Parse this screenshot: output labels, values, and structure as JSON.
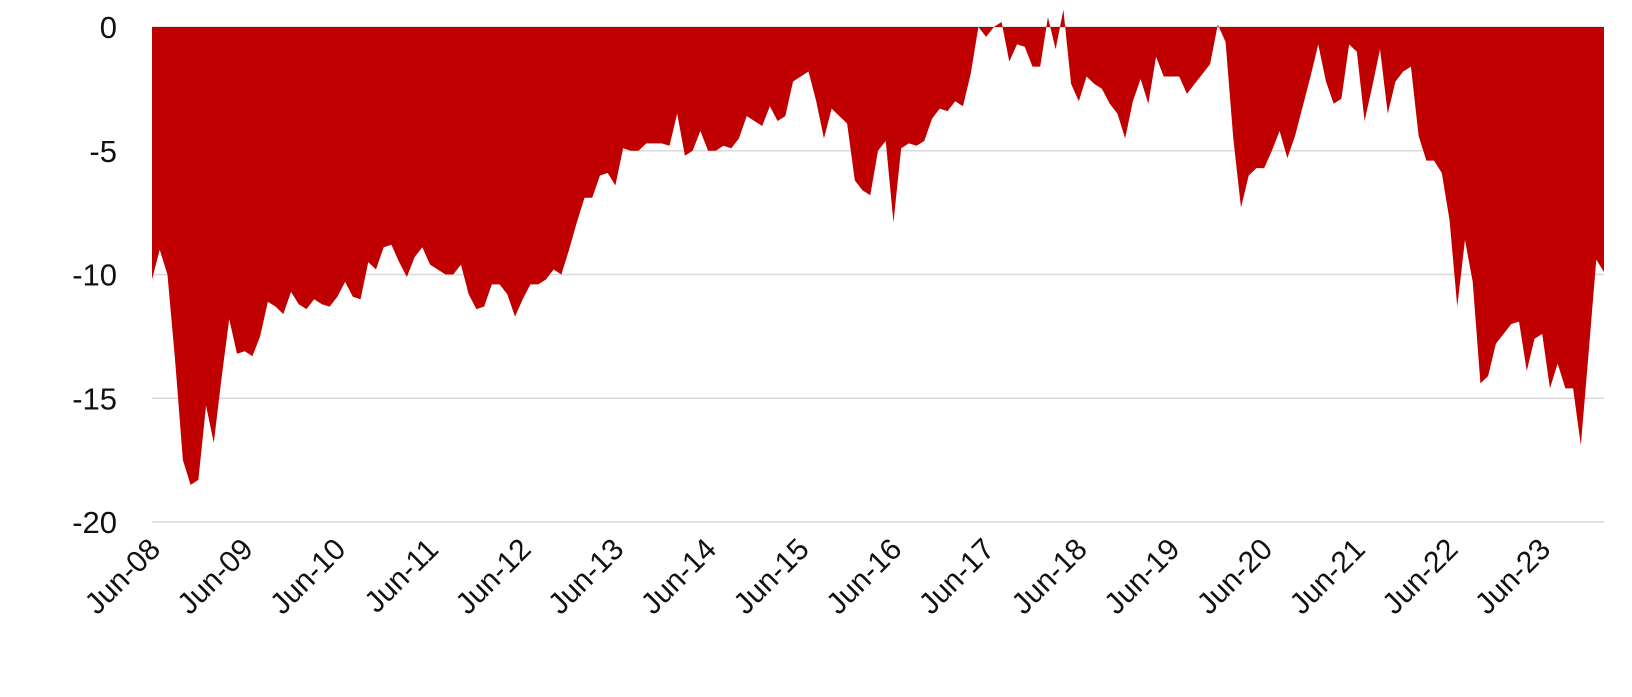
{
  "chart_data": {
    "type": "area",
    "title": "",
    "xlabel": "",
    "ylabel": "",
    "ylim": [
      -20,
      0
    ],
    "yticks": [
      0,
      -5,
      -10,
      -15,
      -20
    ],
    "ytick_labels": [
      "0",
      "-5",
      "-10",
      "-15",
      "-20"
    ],
    "xlim": [
      "Jun-08",
      "Feb-24"
    ],
    "xtick_labels": [
      "Jun-08",
      "Jun-09",
      "Jun-10",
      "Jun-11",
      "Jun-12",
      "Jun-13",
      "Jun-14",
      "Jun-15",
      "Jun-16",
      "Jun-17",
      "Jun-18",
      "Jun-19",
      "Jun-20",
      "Jun-21",
      "Jun-22",
      "Jun-23"
    ],
    "grid": true,
    "legend": "none",
    "colors": {
      "fill": "#c00000",
      "grid": "#d9d9d9",
      "text": "#111111"
    },
    "series": [
      {
        "x": [
          "Jun-08",
          "Jul-08",
          "Aug-08",
          "Sep-08",
          "Oct-08",
          "Nov-08",
          "Dec-08",
          "Jan-09",
          "Feb-09",
          "Mar-09",
          "Apr-09",
          "May-09",
          "Jun-09",
          "Jul-09",
          "Aug-09",
          "Sep-09",
          "Oct-09",
          "Nov-09",
          "Dec-09",
          "Jan-10",
          "Feb-10",
          "Mar-10",
          "Apr-10",
          "May-10",
          "Jun-10",
          "Jul-10",
          "Aug-10",
          "Sep-10",
          "Oct-10",
          "Nov-10",
          "Dec-10",
          "Jan-11",
          "Feb-11",
          "Mar-11",
          "Apr-11",
          "May-11",
          "Jun-11",
          "Jul-11",
          "Aug-11",
          "Sep-11",
          "Oct-11",
          "Nov-11",
          "Dec-11",
          "Jan-12",
          "Feb-12",
          "Mar-12",
          "Apr-12",
          "May-12",
          "Jun-12",
          "Jul-12",
          "Aug-12",
          "Sep-12",
          "Oct-12",
          "Nov-12",
          "Dec-12",
          "Jan-13",
          "Feb-13",
          "Mar-13",
          "Apr-13",
          "May-13",
          "Jun-13",
          "Jul-13",
          "Aug-13",
          "Sep-13",
          "Oct-13",
          "Nov-13",
          "Dec-13",
          "Jan-14",
          "Feb-14",
          "Mar-14",
          "Apr-14",
          "May-14",
          "Jun-14",
          "Jul-14",
          "Aug-14",
          "Sep-14",
          "Oct-14",
          "Nov-14",
          "Dec-14",
          "Jan-15",
          "Feb-15",
          "Mar-15",
          "Apr-15",
          "May-15",
          "Jun-15",
          "Jul-15",
          "Aug-15",
          "Sep-15",
          "Oct-15",
          "Nov-15",
          "Dec-15",
          "Jan-16",
          "Feb-16",
          "Mar-16",
          "Apr-16",
          "May-16",
          "Jun-16",
          "Jul-16",
          "Aug-16",
          "Sep-16",
          "Oct-16",
          "Nov-16",
          "Dec-16",
          "Jan-17",
          "Feb-17",
          "Mar-17",
          "Apr-17",
          "May-17",
          "Jun-17",
          "Jul-17",
          "Aug-17",
          "Sep-17",
          "Oct-17",
          "Nov-17",
          "Dec-17",
          "Jan-18",
          "Feb-18",
          "Mar-18",
          "Apr-18",
          "May-18",
          "Jun-18",
          "Jul-18",
          "Aug-18",
          "Sep-18",
          "Oct-18",
          "Nov-18",
          "Dec-18",
          "Jan-19",
          "Feb-19",
          "Mar-19",
          "Apr-19",
          "May-19",
          "Jun-19",
          "Jul-19",
          "Aug-19",
          "Sep-19",
          "Oct-19",
          "Nov-19",
          "Dec-19",
          "Jan-20",
          "Feb-20",
          "Mar-20",
          "Apr-20",
          "May-20",
          "Jun-20",
          "Jul-20",
          "Aug-20",
          "Sep-20",
          "Oct-20",
          "Nov-20",
          "Dec-20",
          "Jan-21",
          "Feb-21",
          "Mar-21",
          "Apr-21",
          "May-21",
          "Jun-21",
          "Jul-21",
          "Aug-21",
          "Sep-21",
          "Oct-21",
          "Nov-21",
          "Dec-21",
          "Jan-22",
          "Feb-22",
          "Mar-22",
          "Apr-22",
          "May-22",
          "Jun-22",
          "Jul-22",
          "Aug-22",
          "Sep-22",
          "Oct-22",
          "Nov-22",
          "Dec-22",
          "Jan-23",
          "Feb-23",
          "Mar-23",
          "Apr-23",
          "May-23",
          "Jun-23",
          "Jul-23",
          "Aug-23",
          "Sep-23",
          "Oct-23",
          "Nov-23",
          "Dec-23",
          "Jan-24",
          "Feb-24"
        ],
        "values": [
          -10.2,
          -9.0,
          -10.0,
          -13.5,
          -17.5,
          -18.5,
          -18.3,
          -15.3,
          -16.8,
          -14.2,
          -11.8,
          -13.2,
          -13.1,
          -13.3,
          -12.5,
          -11.1,
          -11.3,
          -11.6,
          -10.7,
          -11.2,
          -11.4,
          -11.0,
          -11.2,
          -11.3,
          -10.9,
          -10.3,
          -10.9,
          -11.0,
          -9.5,
          -9.8,
          -8.9,
          -8.8,
          -9.5,
          -10.1,
          -9.3,
          -8.9,
          -9.6,
          -9.8,
          -10.0,
          -10.0,
          -9.6,
          -10.8,
          -11.4,
          -11.3,
          -10.4,
          -10.4,
          -10.8,
          -11.7,
          -11.0,
          -10.4,
          -10.4,
          -10.2,
          -9.8,
          -10.0,
          -9.0,
          -7.9,
          -6.9,
          -6.9,
          -6.0,
          -5.9,
          -6.4,
          -4.9,
          -5.0,
          -5.0,
          -4.7,
          -4.7,
          -4.7,
          -4.8,
          -3.5,
          -5.2,
          -5.0,
          -4.2,
          -5.0,
          -5.0,
          -4.8,
          -4.9,
          -4.5,
          -3.6,
          -3.8,
          -4.0,
          -3.2,
          -3.8,
          -3.6,
          -2.2,
          -2.0,
          -1.8,
          -3.0,
          -4.5,
          -3.3,
          -3.6,
          -3.9,
          -6.2,
          -6.6,
          -6.8,
          -5.0,
          -4.6,
          -7.9,
          -4.9,
          -4.7,
          -4.8,
          -4.6,
          -3.7,
          -3.3,
          -3.4,
          -3.0,
          -3.2,
          -1.9,
          0.0,
          -0.4,
          0.0,
          0.2,
          -1.4,
          -0.7,
          -0.8,
          -1.6,
          -1.6,
          0.4,
          -0.9,
          0.7,
          -2.3,
          -3.0,
          -2.0,
          -2.3,
          -2.5,
          -3.1,
          -3.5,
          -4.5,
          -3.0,
          -2.1,
          -3.1,
          -1.2,
          -2.0,
          -2.0,
          -2.0,
          -2.7,
          -2.3,
          -1.9,
          -1.5,
          0.1,
          -0.6,
          -4.5,
          -7.3,
          -6.0,
          -5.7,
          -5.7,
          -5.0,
          -4.2,
          -5.3,
          -4.4,
          -3.2,
          -2.0,
          -0.7,
          -2.2,
          -3.1,
          -2.9,
          -0.7,
          -1.0,
          -3.8,
          -2.4,
          -0.9,
          -3.5,
          -2.2,
          -1.8,
          -1.6,
          -4.4,
          -5.4,
          -5.4,
          -5.9,
          -7.8,
          -11.3,
          -8.6,
          -10.3,
          -14.4,
          -14.1,
          -12.8,
          -12.4,
          -12.0,
          -11.9,
          -13.9,
          -12.6,
          -12.4,
          -14.6,
          -13.6,
          -14.6,
          -14.6,
          -16.9,
          -13.2,
          -9.4,
          -9.9
        ]
      }
    ]
  }
}
